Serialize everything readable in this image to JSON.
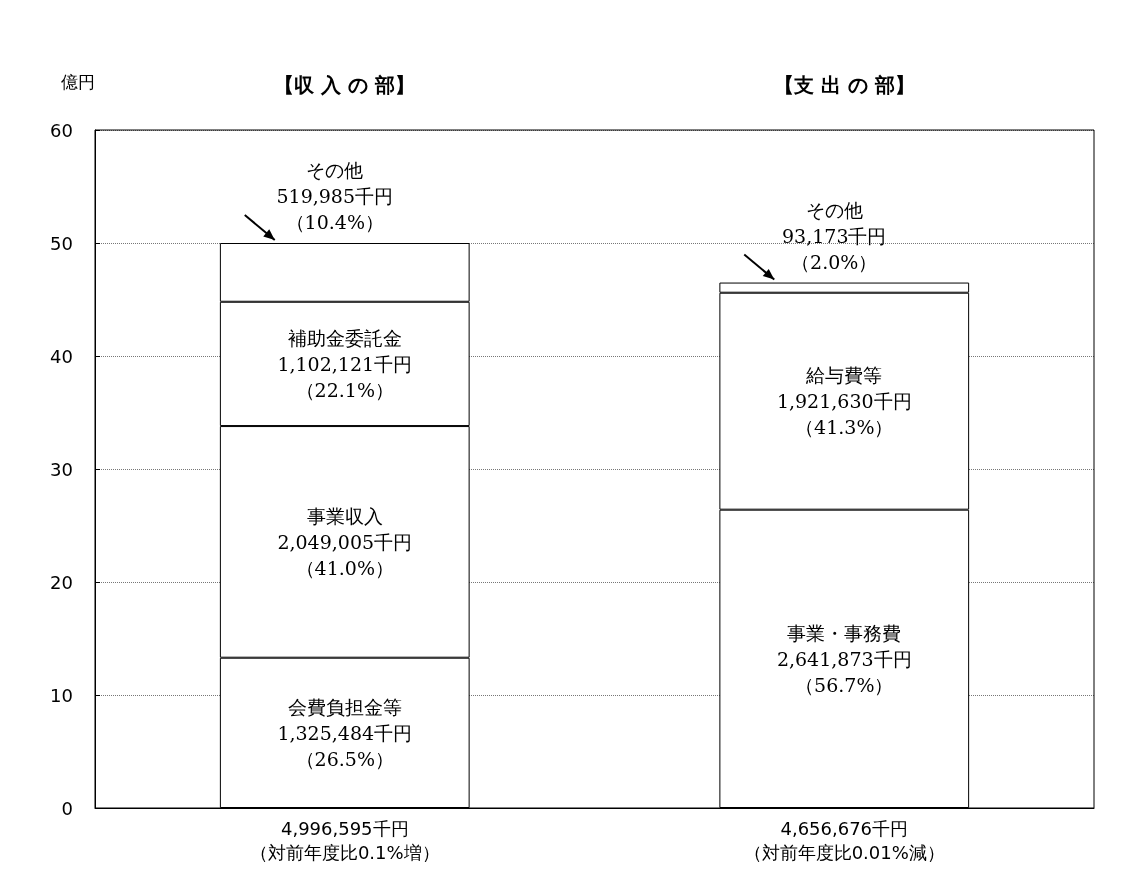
{
  "chart_data": {
    "type": "bar",
    "stacked": true,
    "ylabel": "億円",
    "categories": [
      "4,996,595千円（対前年度比0.1%増）",
      "4,656,676千円（対前年度比0.01%減）"
    ],
    "series": [
      {
        "color": "#ffffff",
        "values": [
          13.3,
          26.4
        ]
      },
      {
        "color": "#ffffff",
        "values": [
          20.5,
          19.2
        ]
      },
      {
        "color": "#ffffff",
        "values": [
          11.0,
          0.9
        ]
      },
      {
        "color": "#ffffff",
        "values": [
          5.2,
          null
        ]
      }
    ],
    "annotations": [
      "【収 入 の 部】",
      "【支 出 の 部】",
      "会費負担金等1,325,484千円（26.5%）",
      "事業収入2,049,005千円（41.0%）",
      "補助金委託金1,102,121千円（22.1%）",
      "事業・事務費2,641,873千円（56.7%）",
      "給与費等1,921,630千円（41.3%）",
      {
        "text": "その他519,985千円（10.4%）",
        "x": "4,996,595千円（対前年度比0.1%増）",
        "y": 50.0
      },
      {
        "text": "その他93,173千円（2.0%）",
        "x": "4,656,676千円（対前年度比0.01%減）",
        "y": 46.5
      }
    ],
    "ylim": [
      0,
      60
    ],
    "yticks": [
      0,
      10,
      20,
      30,
      40,
      50,
      60
    ],
    "grid": "y"
  }
}
